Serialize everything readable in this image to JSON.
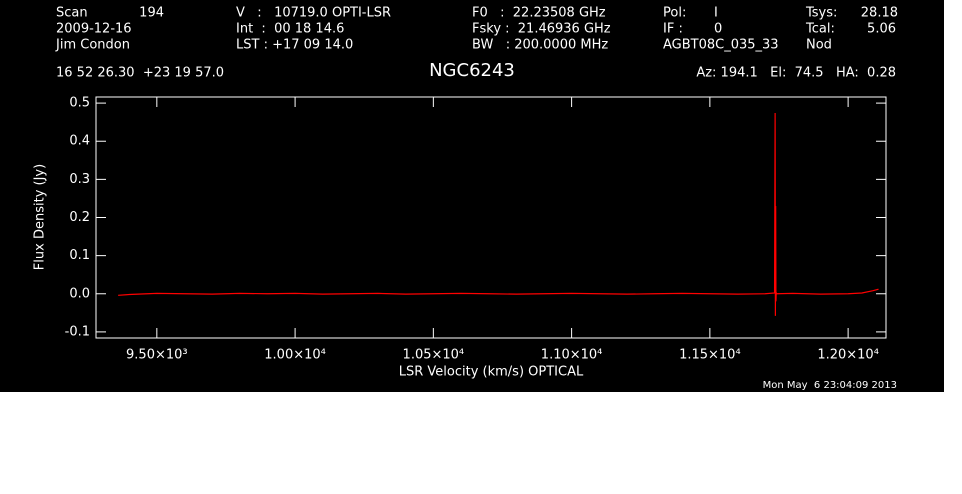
{
  "header": {
    "scan_label": "Scan",
    "scan": "194",
    "date": "2009-12-16",
    "observer": "Jim Condon",
    "coords": "16 52 26.30  +23 19 57.0",
    "velocity": "V   :   10719.0 OPTI-LSR",
    "int": "Int  :  00 18 14.6",
    "lst": "LST : +17 09 14.0",
    "f0": "F0   :  22.23508 GHz",
    "fsky": "Fsky :  21.46936 GHz",
    "bw": "BW   : 200.0000 MHz",
    "pol_label": "Pol:",
    "pol": "I",
    "if_label": "IF :",
    "if": "0",
    "project": "AGBT08C_035_33",
    "tsys_label": "Tsys:",
    "tsys": "28.18",
    "tcal_label": "Tcal:",
    "tcal": "5.06",
    "mode": "Nod",
    "pointing": "Az: 194.1   El:  74.5   HA:  0.28",
    "timestamp": "Mon May  6 23:04:09 2013"
  },
  "chart_data": {
    "type": "line",
    "title": "NGC6243",
    "x_label": "LSR Velocity (km/s) OPTICAL",
    "y_label": "Flux Density (Jy)",
    "x": [
      9360,
      9400,
      9500,
      9600,
      9700,
      9800,
      9900,
      10000,
      10100,
      10200,
      10300,
      10400,
      10500,
      10600,
      10700,
      10800,
      10900,
      11000,
      11100,
      11200,
      11300,
      11400,
      11500,
      11600,
      11700,
      11734,
      11736,
      11737,
      11738,
      11739,
      11740,
      11742,
      11800,
      11900,
      12000,
      12050,
      12090,
      12110
    ],
    "series": [
      {
        "color": "#ff0000",
        "values": [
          -0.004,
          -0.002,
          0.001,
          0.0,
          -0.001,
          0.001,
          0.0,
          0.001,
          -0.001,
          0.0,
          0.001,
          -0.001,
          0.0,
          0.001,
          0.0,
          -0.001,
          0.0,
          0.001,
          0.0,
          -0.001,
          0.0,
          0.001,
          0.0,
          -0.001,
          0.0,
          0.002,
          0.474,
          -0.058,
          0.23,
          -0.02,
          0.003,
          0.0,
          0.001,
          -0.001,
          0.0,
          0.002,
          0.008,
          0.012
        ]
      }
    ],
    "xlim": [
      9280,
      12137
    ],
    "ylim": [
      -0.116,
      0.516
    ],
    "xticks": [
      {
        "value": 9500,
        "label": "9.50×10³"
      },
      {
        "value": 10000,
        "label": "1.00×10⁴"
      },
      {
        "value": 10500,
        "label": "1.05×10⁴"
      },
      {
        "value": 11000,
        "label": "1.10×10⁴"
      },
      {
        "value": 11500,
        "label": "1.15×10⁴"
      },
      {
        "value": 12000,
        "label": "1.20×10⁴"
      }
    ],
    "yticks": [
      -0.1,
      {
        "value": 0,
        "label": "0.0"
      },
      0.1,
      0.2,
      0.3,
      0.4,
      0.5
    ]
  }
}
